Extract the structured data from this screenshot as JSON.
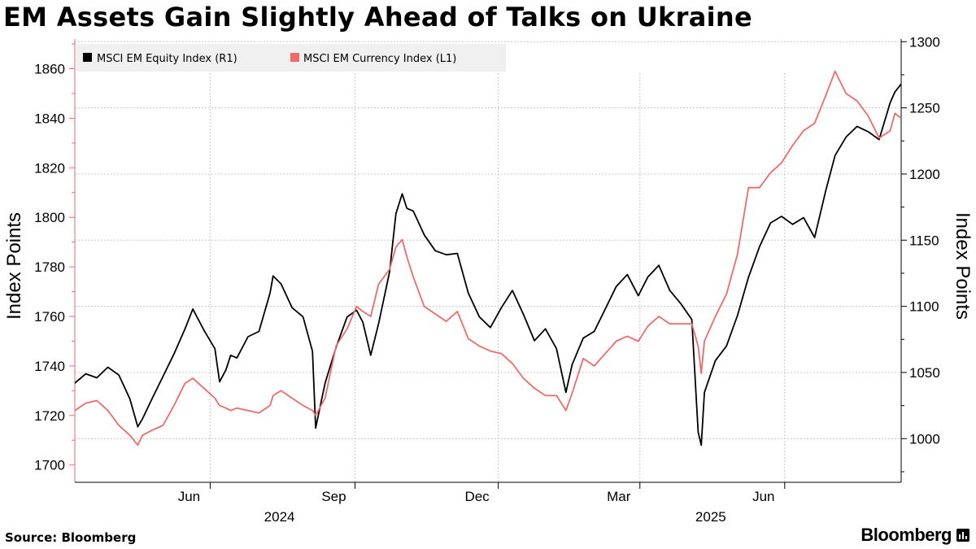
{
  "title": "EM Assets Gain Slightly Ahead of Talks on Ukraine",
  "source": "Source: Bloomberg",
  "brand": "Bloomberg",
  "colors": {
    "equity": "#000000",
    "currency": "#f06a6a",
    "grid": "#c8c8c8"
  },
  "chart_data": {
    "type": "line",
    "title": "EM Assets Gain Slightly Ahead of Talks on Ukraine",
    "ylabel_left": "Index Points",
    "ylabel_right": "Index Points",
    "xlabel": "",
    "x_date_range": [
      "2024-03-07",
      "2025-08-14"
    ],
    "x_ticks": [
      {
        "label": "Jun",
        "date": "2024-06-01"
      },
      {
        "label": "Sep",
        "date": "2024-09-01"
      },
      {
        "label": "Dec",
        "date": "2024-12-01"
      },
      {
        "label": "Mar",
        "date": "2025-03-01"
      },
      {
        "label": "Jun",
        "date": "2025-06-01"
      }
    ],
    "year_labels": [
      {
        "label": "2024",
        "date": "2024-07-15"
      },
      {
        "label": "2025",
        "date": "2025-04-15"
      }
    ],
    "left_axis": {
      "min": 1693,
      "max": 1872,
      "ticks": [
        1700,
        1720,
        1740,
        1760,
        1780,
        1800,
        1820,
        1840,
        1860
      ]
    },
    "right_axis": {
      "min": 967,
      "max": 1302,
      "ticks": [
        1000,
        1050,
        1100,
        1150,
        1200,
        1250,
        1300
      ]
    },
    "legend": [
      "MSCI EM Equity Index (R1)",
      "MSCI EM Currency Index (L1)"
    ],
    "grid": true,
    "series": [
      {
        "name": "MSCI EM Equity Index (R1)",
        "axis": "right",
        "color": "#000000",
        "points": [
          [
            "2024-03-07",
            1042
          ],
          [
            "2024-03-14",
            1049
          ],
          [
            "2024-03-21",
            1046
          ],
          [
            "2024-03-28",
            1054
          ],
          [
            "2024-04-04",
            1048
          ],
          [
            "2024-04-11",
            1030
          ],
          [
            "2024-04-16",
            1009
          ],
          [
            "2024-04-19",
            1015
          ],
          [
            "2024-04-25",
            1030
          ],
          [
            "2024-05-02",
            1047
          ],
          [
            "2024-05-09",
            1064
          ],
          [
            "2024-05-16",
            1083
          ],
          [
            "2024-05-21",
            1098
          ],
          [
            "2024-05-28",
            1082
          ],
          [
            "2024-06-04",
            1068
          ],
          [
            "2024-06-07",
            1043
          ],
          [
            "2024-06-11",
            1052
          ],
          [
            "2024-06-14",
            1063
          ],
          [
            "2024-06-18",
            1061
          ],
          [
            "2024-06-25",
            1077
          ],
          [
            "2024-07-02",
            1081
          ],
          [
            "2024-07-09",
            1110
          ],
          [
            "2024-07-11",
            1123
          ],
          [
            "2024-07-16",
            1117
          ],
          [
            "2024-07-23",
            1099
          ],
          [
            "2024-07-30",
            1092
          ],
          [
            "2024-08-05",
            1066
          ],
          [
            "2024-08-07",
            1008
          ],
          [
            "2024-08-13",
            1042
          ],
          [
            "2024-08-20",
            1069
          ],
          [
            "2024-08-27",
            1092
          ],
          [
            "2024-09-02",
            1097
          ],
          [
            "2024-09-06",
            1088
          ],
          [
            "2024-09-11",
            1063
          ],
          [
            "2024-09-16",
            1087
          ],
          [
            "2024-09-23",
            1126
          ],
          [
            "2024-09-27",
            1170
          ],
          [
            "2024-10-01",
            1185
          ],
          [
            "2024-10-04",
            1174
          ],
          [
            "2024-10-08",
            1172
          ],
          [
            "2024-10-15",
            1154
          ],
          [
            "2024-10-22",
            1142
          ],
          [
            "2024-10-29",
            1139
          ],
          [
            "2024-11-05",
            1140
          ],
          [
            "2024-11-12",
            1110
          ],
          [
            "2024-11-19",
            1092
          ],
          [
            "2024-11-26",
            1084
          ],
          [
            "2024-12-03",
            1099
          ],
          [
            "2024-12-10",
            1112
          ],
          [
            "2024-12-17",
            1094
          ],
          [
            "2024-12-24",
            1074
          ],
          [
            "2024-12-31",
            1083
          ],
          [
            "2025-01-07",
            1068
          ],
          [
            "2025-01-13",
            1035
          ],
          [
            "2025-01-17",
            1056
          ],
          [
            "2025-01-24",
            1076
          ],
          [
            "2025-01-31",
            1081
          ],
          [
            "2025-02-07",
            1098
          ],
          [
            "2025-02-14",
            1115
          ],
          [
            "2025-02-21",
            1124
          ],
          [
            "2025-02-28",
            1108
          ],
          [
            "2025-03-06",
            1122
          ],
          [
            "2025-03-13",
            1131
          ],
          [
            "2025-03-20",
            1112
          ],
          [
            "2025-03-27",
            1102
          ],
          [
            "2025-04-03",
            1090
          ],
          [
            "2025-04-07",
            1005
          ],
          [
            "2025-04-09",
            995
          ],
          [
            "2025-04-11",
            1035
          ],
          [
            "2025-04-18",
            1059
          ],
          [
            "2025-04-25",
            1070
          ],
          [
            "2025-05-02",
            1093
          ],
          [
            "2025-05-09",
            1122
          ],
          [
            "2025-05-16",
            1145
          ],
          [
            "2025-05-23",
            1163
          ],
          [
            "2025-05-30",
            1168
          ],
          [
            "2025-06-06",
            1162
          ],
          [
            "2025-06-13",
            1167
          ],
          [
            "2025-06-20",
            1152
          ],
          [
            "2025-06-27",
            1187
          ],
          [
            "2025-07-03",
            1214
          ],
          [
            "2025-07-10",
            1228
          ],
          [
            "2025-07-17",
            1236
          ],
          [
            "2025-07-24",
            1232
          ],
          [
            "2025-07-31",
            1226
          ],
          [
            "2025-08-07",
            1254
          ],
          [
            "2025-08-10",
            1262
          ],
          [
            "2025-08-14",
            1268
          ]
        ]
      },
      {
        "name": "MSCI EM Currency Index (L1)",
        "axis": "left",
        "color": "#f06a6a",
        "points": [
          [
            "2024-03-07",
            1722
          ],
          [
            "2024-03-14",
            1725
          ],
          [
            "2024-03-21",
            1726
          ],
          [
            "2024-03-28",
            1722
          ],
          [
            "2024-04-04",
            1716
          ],
          [
            "2024-04-11",
            1712
          ],
          [
            "2024-04-16",
            1708
          ],
          [
            "2024-04-19",
            1712
          ],
          [
            "2024-04-25",
            1714
          ],
          [
            "2024-05-02",
            1716
          ],
          [
            "2024-05-09",
            1724
          ],
          [
            "2024-05-16",
            1733
          ],
          [
            "2024-05-21",
            1735
          ],
          [
            "2024-05-28",
            1731
          ],
          [
            "2024-06-04",
            1727
          ],
          [
            "2024-06-07",
            1724
          ],
          [
            "2024-06-11",
            1723
          ],
          [
            "2024-06-14",
            1722
          ],
          [
            "2024-06-18",
            1723
          ],
          [
            "2024-06-25",
            1722
          ],
          [
            "2024-07-02",
            1721
          ],
          [
            "2024-07-09",
            1724
          ],
          [
            "2024-07-11",
            1728
          ],
          [
            "2024-07-16",
            1730
          ],
          [
            "2024-07-23",
            1727
          ],
          [
            "2024-07-30",
            1724
          ],
          [
            "2024-08-05",
            1722
          ],
          [
            "2024-08-07",
            1720
          ],
          [
            "2024-08-13",
            1727
          ],
          [
            "2024-08-20",
            1748
          ],
          [
            "2024-08-27",
            1755
          ],
          [
            "2024-09-02",
            1764
          ],
          [
            "2024-09-06",
            1762
          ],
          [
            "2024-09-11",
            1760
          ],
          [
            "2024-09-16",
            1773
          ],
          [
            "2024-09-23",
            1779
          ],
          [
            "2024-09-27",
            1788
          ],
          [
            "2024-10-01",
            1791
          ],
          [
            "2024-10-04",
            1784
          ],
          [
            "2024-10-08",
            1776
          ],
          [
            "2024-10-15",
            1764
          ],
          [
            "2024-10-22",
            1761
          ],
          [
            "2024-10-29",
            1758
          ],
          [
            "2024-11-05",
            1762
          ],
          [
            "2024-11-12",
            1751
          ],
          [
            "2024-11-19",
            1748
          ],
          [
            "2024-11-26",
            1746
          ],
          [
            "2024-12-03",
            1745
          ],
          [
            "2024-12-10",
            1741
          ],
          [
            "2024-12-17",
            1735
          ],
          [
            "2024-12-24",
            1731
          ],
          [
            "2024-12-31",
            1728
          ],
          [
            "2025-01-07",
            1728
          ],
          [
            "2025-01-13",
            1722
          ],
          [
            "2025-01-17",
            1729
          ],
          [
            "2025-01-24",
            1743
          ],
          [
            "2025-01-31",
            1740
          ],
          [
            "2025-02-07",
            1745
          ],
          [
            "2025-02-14",
            1750
          ],
          [
            "2025-02-21",
            1752
          ],
          [
            "2025-02-28",
            1750
          ],
          [
            "2025-03-06",
            1756
          ],
          [
            "2025-03-13",
            1760
          ],
          [
            "2025-03-20",
            1757
          ],
          [
            "2025-03-27",
            1757
          ],
          [
            "2025-04-03",
            1757
          ],
          [
            "2025-04-07",
            1748
          ],
          [
            "2025-04-09",
            1737
          ],
          [
            "2025-04-11",
            1750
          ],
          [
            "2025-04-18",
            1760
          ],
          [
            "2025-04-25",
            1769
          ],
          [
            "2025-05-02",
            1785
          ],
          [
            "2025-05-09",
            1812
          ],
          [
            "2025-05-16",
            1812
          ],
          [
            "2025-05-23",
            1818
          ],
          [
            "2025-05-30",
            1822
          ],
          [
            "2025-06-06",
            1829
          ],
          [
            "2025-06-13",
            1835
          ],
          [
            "2025-06-20",
            1838
          ],
          [
            "2025-06-27",
            1849
          ],
          [
            "2025-07-03",
            1859
          ],
          [
            "2025-07-10",
            1850
          ],
          [
            "2025-07-17",
            1847
          ],
          [
            "2025-07-24",
            1841
          ],
          [
            "2025-07-31",
            1832
          ],
          [
            "2025-08-07",
            1835
          ],
          [
            "2025-08-10",
            1842
          ],
          [
            "2025-08-14",
            1840
          ]
        ]
      }
    ]
  }
}
